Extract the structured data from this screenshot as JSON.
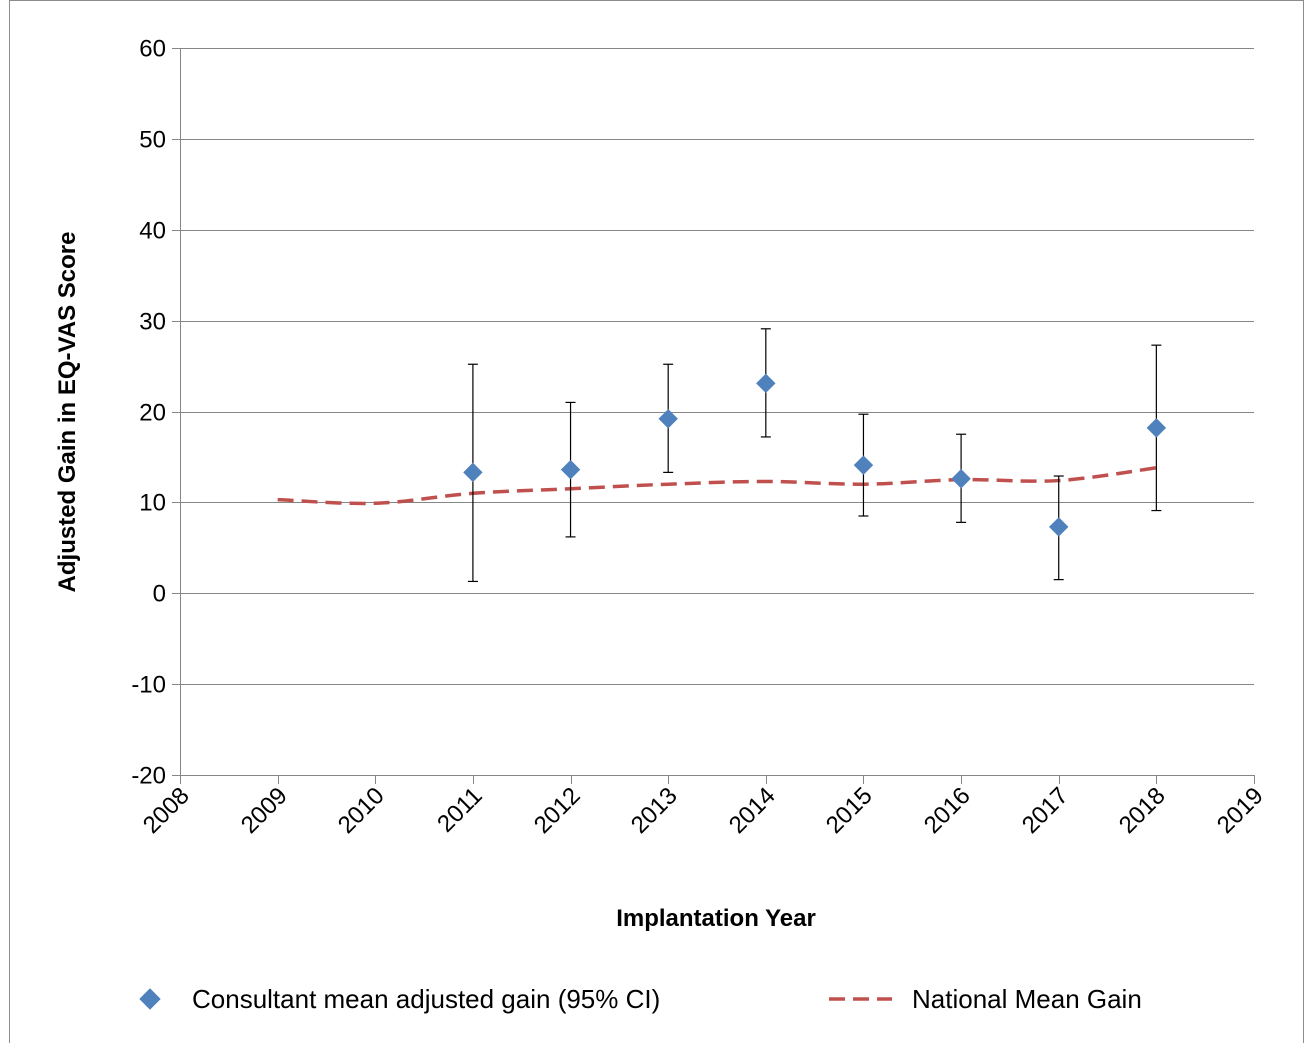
{
  "chart_data": {
    "type": "scatter",
    "title": "",
    "xlabel": "Implantation Year",
    "ylabel": "Adjusted Gain in EQ-VAS Score",
    "xlim": [
      2008,
      2019
    ],
    "ylim": [
      -20,
      60
    ],
    "x_ticks": [
      "2008",
      "2009",
      "2010",
      "2011",
      "2012",
      "2013",
      "2014",
      "2015",
      "2016",
      "2017",
      "2018",
      "2019"
    ],
    "y_ticks": [
      "-20",
      "-10",
      "0",
      "10",
      "20",
      "30",
      "40",
      "50",
      "60"
    ],
    "grid": "horizontal",
    "legend_position": "bottom",
    "series": [
      {
        "name": "Consultant mean adjusted gain (95% CI)",
        "kind": "points-with-error-bars",
        "color": "#4f81bd",
        "marker": "diamond",
        "x": [
          2011,
          2012,
          2013,
          2014,
          2015,
          2016,
          2017,
          2018
        ],
        "y": [
          13.3,
          13.6,
          19.2,
          23.1,
          14.1,
          12.6,
          7.3,
          18.2
        ],
        "ci_low": [
          1.3,
          6.2,
          13.3,
          17.2,
          8.5,
          7.8,
          1.5,
          9.1
        ],
        "ci_high": [
          25.2,
          21.0,
          25.2,
          29.1,
          19.7,
          17.5,
          12.9,
          27.3
        ]
      },
      {
        "name": "National Mean Gain",
        "kind": "dashed-line",
        "color": "#c0504d",
        "x": [
          2009,
          2010,
          2011,
          2012,
          2013,
          2014,
          2015,
          2016,
          2017,
          2018
        ],
        "y": [
          10.3,
          9.9,
          11.0,
          11.5,
          12.0,
          12.3,
          12.0,
          12.5,
          12.4,
          13.8
        ]
      }
    ]
  }
}
